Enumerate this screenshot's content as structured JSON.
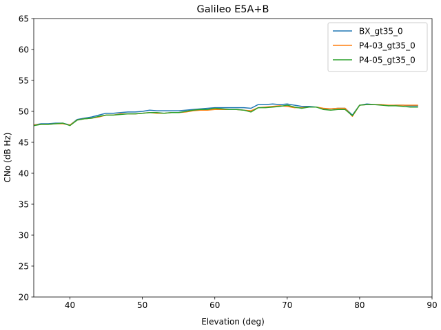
{
  "chart_data": {
    "type": "line",
    "title": "Galileo E5A+B",
    "xlabel": "Elevation (deg)",
    "ylabel": "CNo (dB Hz)",
    "xlim": [
      35,
      90
    ],
    "ylim": [
      20,
      65
    ],
    "xticks": [
      40,
      50,
      60,
      70,
      80,
      90
    ],
    "yticks": [
      20,
      25,
      30,
      35,
      40,
      45,
      50,
      55,
      60,
      65
    ],
    "grid": false,
    "legend_position": "top-right",
    "x": [
      35,
      36,
      37,
      38,
      39,
      40,
      41,
      42,
      43,
      44,
      45,
      46,
      47,
      48,
      49,
      50,
      51,
      52,
      53,
      54,
      55,
      56,
      57,
      58,
      59,
      60,
      61,
      62,
      63,
      64,
      65,
      66,
      67,
      68,
      69,
      70,
      71,
      72,
      73,
      74,
      75,
      76,
      77,
      78,
      79,
      80,
      81,
      82,
      83,
      84,
      85,
      86,
      87,
      88
    ],
    "series": [
      {
        "name": "BX_gt35_0",
        "color": "#1f77b4",
        "values": [
          47.8,
          48.0,
          48.0,
          48.1,
          48.1,
          47.8,
          48.7,
          48.9,
          49.1,
          49.4,
          49.7,
          49.7,
          49.8,
          49.9,
          49.9,
          50.0,
          50.2,
          50.1,
          50.1,
          50.1,
          50.1,
          50.2,
          50.3,
          50.4,
          50.5,
          50.6,
          50.6,
          50.6,
          50.6,
          50.6,
          50.5,
          51.1,
          51.1,
          51.2,
          51.1,
          51.2,
          51.0,
          50.8,
          50.8,
          50.7,
          50.4,
          50.4,
          50.5,
          50.5,
          49.4,
          51.0,
          51.2,
          51.1,
          51.1,
          50.9,
          51.0,
          51.0,
          50.9,
          50.9
        ]
      },
      {
        "name": "P4-03_gt35_0",
        "color": "#ff7f0e",
        "values": [
          47.8,
          47.9,
          47.9,
          48.0,
          48.0,
          47.8,
          48.6,
          48.8,
          48.9,
          49.1,
          49.4,
          49.4,
          49.6,
          49.6,
          49.6,
          49.7,
          49.8,
          49.7,
          49.7,
          49.8,
          49.8,
          49.9,
          50.1,
          50.2,
          50.2,
          50.3,
          50.3,
          50.3,
          50.3,
          50.2,
          50.1,
          50.6,
          50.7,
          50.8,
          50.9,
          50.8,
          50.6,
          50.6,
          50.7,
          50.7,
          50.5,
          50.4,
          50.5,
          50.5,
          49.2,
          51.0,
          51.1,
          51.1,
          51.1,
          51.0,
          51.0,
          51.0,
          51.0,
          51.0
        ]
      },
      {
        "name": "P4-05_gt35_0",
        "color": "#2ca02c",
        "values": [
          47.7,
          47.9,
          47.9,
          48.0,
          48.1,
          47.7,
          48.6,
          48.8,
          48.9,
          49.2,
          49.4,
          49.4,
          49.5,
          49.6,
          49.6,
          49.7,
          49.8,
          49.8,
          49.7,
          49.8,
          49.8,
          50.0,
          50.2,
          50.3,
          50.3,
          50.5,
          50.4,
          50.3,
          50.3,
          50.2,
          49.9,
          50.6,
          50.6,
          50.7,
          50.8,
          51.0,
          50.7,
          50.5,
          50.7,
          50.7,
          50.3,
          50.2,
          50.3,
          50.3,
          49.3,
          51.0,
          51.1,
          51.1,
          51.0,
          50.9,
          50.9,
          50.8,
          50.7,
          50.7
        ]
      }
    ]
  }
}
